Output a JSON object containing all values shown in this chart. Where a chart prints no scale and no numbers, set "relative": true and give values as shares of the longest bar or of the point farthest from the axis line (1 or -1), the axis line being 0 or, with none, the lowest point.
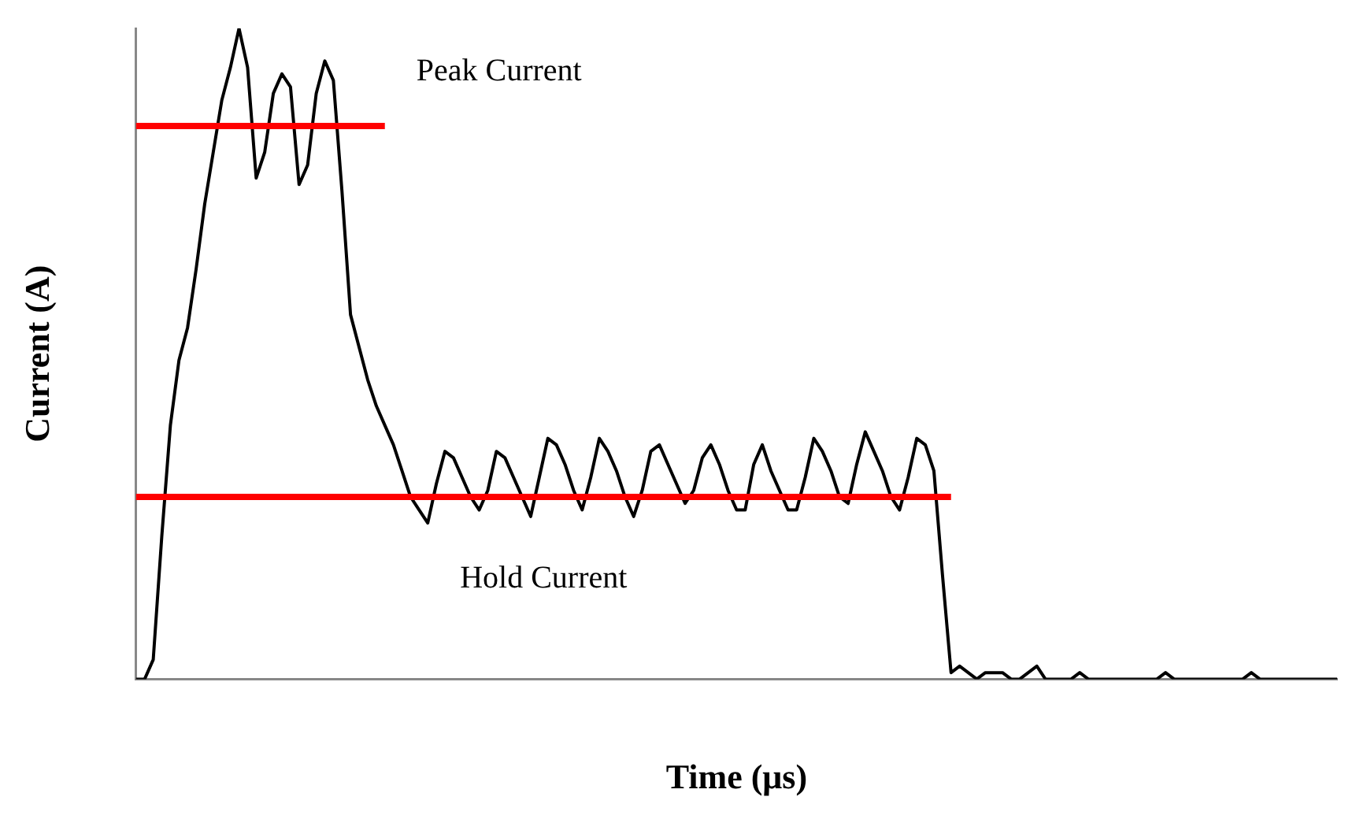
{
  "chart_data": {
    "type": "line",
    "relative": true,
    "xlabel": "Time (μs)",
    "ylabel": "Current (A)",
    "grid": false,
    "legend": false,
    "marker": "none",
    "line_style": "solid",
    "categories": [
      null,
      null,
      null,
      null,
      null,
      null,
      null,
      null,
      null,
      null,
      null,
      null,
      null,
      null,
      null,
      null,
      null,
      null,
      null,
      null,
      null,
      null,
      null,
      null,
      null,
      null,
      null,
      null,
      null,
      null,
      null,
      null,
      null,
      null,
      null,
      null,
      null,
      null,
      null,
      null,
      null,
      null,
      null,
      null,
      null,
      null,
      null,
      null,
      null,
      null,
      null,
      null,
      null,
      null,
      null,
      null,
      null,
      null,
      null,
      null,
      null,
      null,
      null,
      null,
      null,
      null,
      null,
      null,
      null,
      null,
      null,
      null,
      null,
      null,
      null,
      null,
      null,
      null,
      null,
      null,
      null,
      null,
      null,
      null,
      null,
      null,
      null,
      null,
      null,
      null,
      null,
      null,
      null,
      null,
      null,
      null,
      null,
      null,
      null,
      null,
      null,
      null,
      null,
      null,
      null,
      null,
      null,
      null,
      null,
      null,
      null,
      null,
      null,
      null,
      null,
      null,
      null,
      null,
      null,
      null,
      null,
      null,
      null,
      null,
      null,
      null,
      null,
      null,
      null,
      null,
      null,
      null,
      null,
      null,
      null,
      null,
      null,
      null,
      null,
      null,
      null
    ],
    "series": [
      {
        "color": "#000000",
        "values": [
          0,
          0,
          0.03,
          0.22,
          0.39,
          0.49,
          0.54,
          0.63,
          0.73,
          0.81,
          0.89,
          0.94,
          1,
          0.94,
          0.77,
          0.81,
          0.9,
          0.93,
          0.91,
          0.76,
          0.79,
          0.9,
          0.95,
          0.92,
          0.75,
          0.56,
          0.51,
          0.46,
          0.42,
          0.39,
          0.36,
          0.32,
          0.28,
          0.26,
          0.24,
          0.3,
          0.35,
          0.34,
          0.31,
          0.28,
          0.26,
          0.29,
          0.35,
          0.34,
          0.31,
          0.28,
          0.25,
          0.31,
          0.37,
          0.36,
          0.33,
          0.29,
          0.26,
          0.31,
          0.37,
          0.35,
          0.32,
          0.28,
          0.25,
          0.29,
          0.35,
          0.36,
          0.33,
          0.3,
          0.27,
          0.29,
          0.34,
          0.36,
          0.33,
          0.29,
          0.26,
          0.26,
          0.33,
          0.36,
          0.32,
          0.29,
          0.26,
          0.26,
          0.31,
          0.37,
          0.35,
          0.32,
          0.28,
          0.27,
          0.33,
          0.38,
          0.35,
          0.32,
          0.28,
          0.26,
          0.31,
          0.37,
          0.36,
          0.32,
          0.16,
          0.01,
          0.02,
          0.01,
          0,
          0.01,
          0.01,
          0.01,
          0,
          0,
          0.01,
          0.02,
          0,
          0,
          0,
          0,
          0.01,
          0,
          0,
          0,
          0,
          0,
          0,
          0,
          0,
          0,
          0.01,
          0,
          0,
          0,
          0,
          0,
          0,
          0,
          0,
          0,
          0.01,
          0,
          0,
          0,
          0,
          0,
          0,
          0,
          0,
          0,
          0
        ]
      },
      {
        "type": "line",
        "color": "#ff0000",
        "values": [
          0.85,
          0.85,
          0.85,
          0.85,
          0.85,
          0.85,
          0.85,
          0.85,
          0.85,
          0.85,
          0.85,
          0.85,
          0.85,
          0.85,
          0.85,
          0.85,
          0.85,
          0.85,
          0.85,
          0.85,
          0.85,
          0.85,
          0.85,
          0.85,
          0.85,
          0.85,
          0.85,
          0.85,
          0.85,
          0.85,
          null,
          null,
          null,
          null,
          null,
          null,
          null,
          null,
          null,
          null,
          null,
          null,
          null,
          null,
          null,
          null,
          null,
          null,
          null,
          null,
          null,
          null,
          null,
          null,
          null,
          null,
          null,
          null,
          null,
          null,
          null,
          null,
          null,
          null,
          null,
          null,
          null,
          null,
          null,
          null,
          null,
          null,
          null,
          null,
          null,
          null,
          null,
          null,
          null,
          null,
          null,
          null,
          null,
          null,
          null,
          null,
          null,
          null,
          null,
          null,
          null,
          null,
          null,
          null,
          null,
          null,
          null,
          null,
          null,
          null,
          null,
          null,
          null,
          null,
          null,
          null,
          null,
          null,
          null,
          null,
          null,
          null,
          null,
          null,
          null,
          null,
          null,
          null,
          null,
          null,
          null,
          null,
          null,
          null,
          null,
          null,
          null,
          null,
          null,
          null,
          null,
          null,
          null,
          null,
          null,
          null,
          null,
          null,
          null,
          null,
          null
        ]
      },
      {
        "type": "line",
        "color": "#ff0000",
        "values": [
          0.28,
          0.28,
          0.28,
          0.28,
          0.28,
          0.28,
          0.28,
          0.28,
          0.28,
          0.28,
          0.28,
          0.28,
          0.28,
          0.28,
          0.28,
          0.28,
          0.28,
          0.28,
          0.28,
          0.28,
          0.28,
          0.28,
          0.28,
          0.28,
          0.28,
          0.28,
          0.28,
          0.28,
          0.28,
          0.28,
          0.28,
          0.28,
          0.28,
          0.28,
          0.28,
          0.28,
          0.28,
          0.28,
          0.28,
          0.28,
          0.28,
          0.28,
          0.28,
          0.28,
          0.28,
          0.28,
          0.28,
          0.28,
          0.28,
          0.28,
          0.28,
          0.28,
          0.28,
          0.28,
          0.28,
          0.28,
          0.28,
          0.28,
          0.28,
          0.28,
          0.28,
          0.28,
          0.28,
          0.28,
          0.28,
          0.28,
          0.28,
          0.28,
          0.28,
          0.28,
          0.28,
          0.28,
          0.28,
          0.28,
          0.28,
          0.28,
          0.28,
          0.28,
          0.28,
          0.28,
          0.28,
          0.28,
          0.28,
          0.28,
          0.28,
          0.28,
          0.28,
          0.28,
          0.28,
          0.28,
          0.28,
          0.28,
          0.28,
          0.28,
          0.28,
          0.28,
          null,
          null,
          null,
          null,
          null,
          null,
          null,
          null,
          null,
          null,
          null,
          null,
          null,
          null,
          null,
          null,
          null,
          null,
          null,
          null,
          null,
          null,
          null,
          null,
          null,
          null,
          null,
          null,
          null,
          null,
          null,
          null,
          null,
          null,
          null,
          null,
          null,
          null,
          null,
          null,
          null,
          null,
          null,
          null,
          null
        ]
      }
    ],
    "annotations": [
      "Peak Current",
      "Hold Current"
    ]
  }
}
